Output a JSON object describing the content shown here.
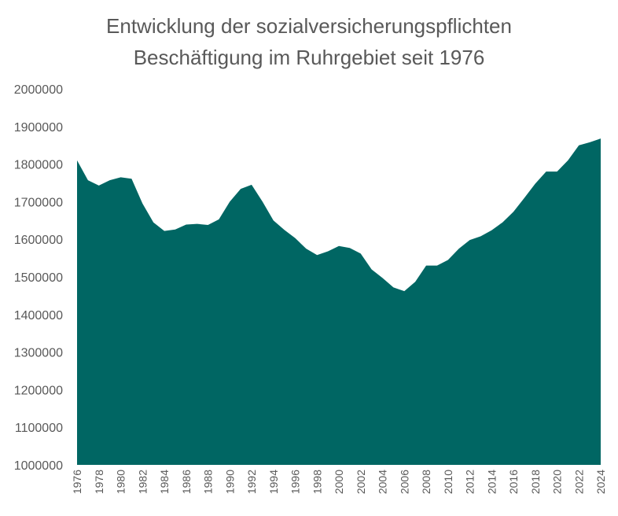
{
  "chart_data": {
    "type": "area",
    "title_lines": [
      "Entwicklung der sozialversicherungspflichten",
      "Beschäftigung im Ruhrgebiet seit 1976"
    ],
    "xlabel": "",
    "ylabel": "",
    "ylim": [
      1000000,
      2000000
    ],
    "y_ticks": [
      "1000000",
      "1100000",
      "1200000",
      "1300000",
      "1400000",
      "1500000",
      "1600000",
      "1700000",
      "1800000",
      "1900000",
      "2000000"
    ],
    "x_tick_labels": [
      "1976",
      "1978",
      "1980",
      "1982",
      "1984",
      "1986",
      "1988",
      "1990",
      "1992",
      "1994",
      "1996",
      "1998",
      "2000",
      "2002",
      "2004",
      "2006",
      "2008",
      "2010",
      "2012",
      "2014",
      "2016",
      "2018",
      "2020",
      "2022",
      "2024"
    ],
    "x": [
      1976,
      1977,
      1978,
      1979,
      1980,
      1981,
      1982,
      1983,
      1984,
      1985,
      1986,
      1987,
      1988,
      1989,
      1990,
      1991,
      1992,
      1993,
      1994,
      1995,
      1996,
      1997,
      1998,
      1999,
      2000,
      2001,
      2002,
      2003,
      2004,
      2005,
      2006,
      2007,
      2008,
      2009,
      2010,
      2011,
      2012,
      2013,
      2014,
      2015,
      2016,
      2017,
      2018,
      2019,
      2020,
      2021,
      2022,
      2023,
      2024
    ],
    "values": [
      1810000,
      1757000,
      1743000,
      1757000,
      1765000,
      1761000,
      1695000,
      1645000,
      1622000,
      1626000,
      1639000,
      1641000,
      1638000,
      1653000,
      1700000,
      1734000,
      1745000,
      1700000,
      1650000,
      1625000,
      1603000,
      1575000,
      1558000,
      1568000,
      1582000,
      1577000,
      1562000,
      1520000,
      1497000,
      1472000,
      1462000,
      1487000,
      1530000,
      1530000,
      1545000,
      1575000,
      1598000,
      1608000,
      1624000,
      1645000,
      1673000,
      1710000,
      1748000,
      1780000,
      1780000,
      1810000,
      1850000,
      1858000,
      1868000
    ],
    "grid": false,
    "legend": "none",
    "fill_color": "#006663"
  }
}
